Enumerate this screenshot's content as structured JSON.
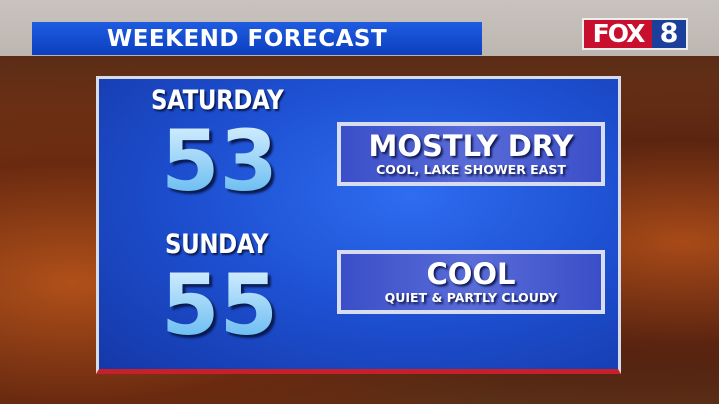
{
  "header": {
    "title": "WEEKEND FORECAST"
  },
  "logo": {
    "fox": "FOX",
    "number": "8"
  },
  "days": [
    {
      "day": "SATURDAY",
      "high": "53",
      "headline": "MOSTLY DRY",
      "detail": "COOL, LAKE SHOWER EAST"
    },
    {
      "day": "SUNDAY",
      "high": "55",
      "headline": "COOL",
      "detail": "QUIET & PARTLY CLOUDY"
    }
  ],
  "colors": {
    "panel": "#1d4fd0",
    "header": "#1553d8",
    "accent_stripe": "#c8202a",
    "temp": "#8fd0ff"
  }
}
